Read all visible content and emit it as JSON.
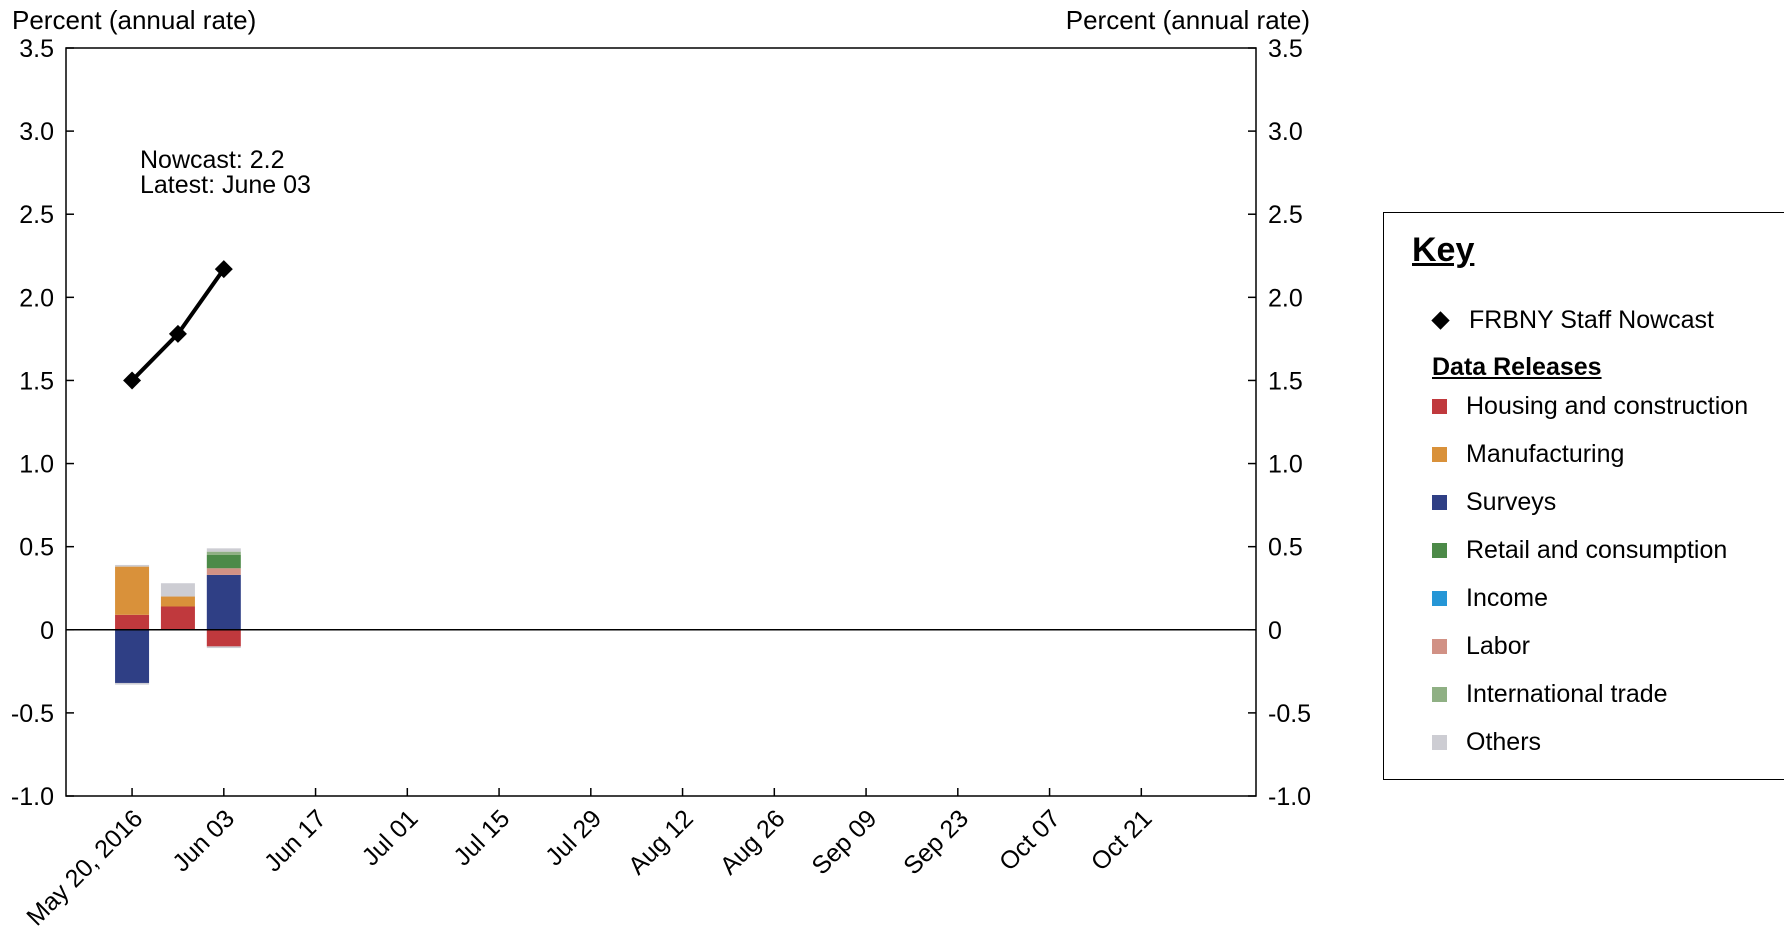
{
  "chart_data": {
    "type": "bar",
    "y_axis_title_left": "Percent (annual rate)",
    "y_axis_title_right": "Percent (annual rate)",
    "ylim": [
      -1.0,
      3.5
    ],
    "yticks": [
      {
        "value": 3.5,
        "label": "3.5"
      },
      {
        "value": 3.0,
        "label": "3.0"
      },
      {
        "value": 2.5,
        "label": "2.5"
      },
      {
        "value": 2.0,
        "label": "2.0"
      },
      {
        "value": 1.5,
        "label": "1.5"
      },
      {
        "value": 1.0,
        "label": "1.0"
      },
      {
        "value": 0.5,
        "label": "0.5"
      },
      {
        "value": 0.0,
        "label": "0"
      },
      {
        "value": -0.5,
        "label": "-0.5"
      },
      {
        "value": -1.0,
        "label": "-1.0"
      }
    ],
    "xlim": [
      -0.72,
      12.25
    ],
    "xticks": [
      "May 20, 2016",
      "Jun 03",
      "Jun 17",
      "Jul 01",
      "Jul 15",
      "Jul 29",
      "Aug 12",
      "Aug 26",
      "Sep 09",
      "Sep 23",
      "Oct 07",
      "Oct 21"
    ],
    "xtick_positions": [
      0,
      1,
      2,
      3,
      4,
      5,
      6,
      7,
      8,
      9,
      10,
      11
    ],
    "annotation": [
      "Nowcast:  2.2",
      "Latest: June 03"
    ],
    "nowcast_series": {
      "name": "FRBNY Staff Nowcast",
      "x": [
        0,
        0.5,
        1
      ],
      "y": [
        1.5,
        1.78,
        2.17
      ]
    },
    "bars": [
      {
        "x": 0,
        "segments": [
          {
            "category": "Housing and construction",
            "value": 0.09
          },
          {
            "category": "Manufacturing",
            "value": 0.29
          },
          {
            "category": "Others",
            "value": 0.01
          },
          {
            "category": "Surveys",
            "value": -0.32
          },
          {
            "category": "Others",
            "value": -0.01
          }
        ]
      },
      {
        "x": 0.5,
        "segments": [
          {
            "category": "Housing and construction",
            "value": 0.14
          },
          {
            "category": "Manufacturing",
            "value": 0.06
          },
          {
            "category": "Others",
            "value": 0.08
          }
        ]
      },
      {
        "x": 1,
        "segments": [
          {
            "category": "Surveys",
            "value": 0.33
          },
          {
            "category": "Labor",
            "value": 0.04
          },
          {
            "category": "Retail and consumption",
            "value": 0.08
          },
          {
            "category": "International trade",
            "value": 0.02
          },
          {
            "category": "Others",
            "value": 0.02
          },
          {
            "category": "Housing and construction",
            "value": -0.1
          },
          {
            "category": "Others",
            "value": -0.01
          }
        ]
      }
    ],
    "categories": [
      {
        "name": "Housing and construction",
        "color": "#c0393d"
      },
      {
        "name": "Manufacturing",
        "color": "#d9913a"
      },
      {
        "name": "Surveys",
        "color": "#2f3f85"
      },
      {
        "name": "Retail and consumption",
        "color": "#4c8a48"
      },
      {
        "name": "Income",
        "color": "#2596d6"
      },
      {
        "name": "Labor",
        "color": "#d19185"
      },
      {
        "name": "International trade",
        "color": "#8fb084"
      },
      {
        "name": "Others",
        "color": "#cdcdd3"
      }
    ]
  },
  "legend": {
    "title": "Key",
    "nowcast_label": "FRBNY Staff Nowcast",
    "data_releases_title": "Data Releases",
    "items": [
      {
        "label": "Housing and construction",
        "color": "#c0393d"
      },
      {
        "label": "Manufacturing",
        "color": "#d9913a"
      },
      {
        "label": "Surveys",
        "color": "#2f3f85"
      },
      {
        "label": "Retail and consumption",
        "color": "#4c8a48"
      },
      {
        "label": "Income",
        "color": "#2596d6"
      },
      {
        "label": "Labor",
        "color": "#d19185"
      },
      {
        "label": "International trade",
        "color": "#8fb084"
      },
      {
        "label": "Others",
        "color": "#cdcdd3"
      }
    ]
  }
}
